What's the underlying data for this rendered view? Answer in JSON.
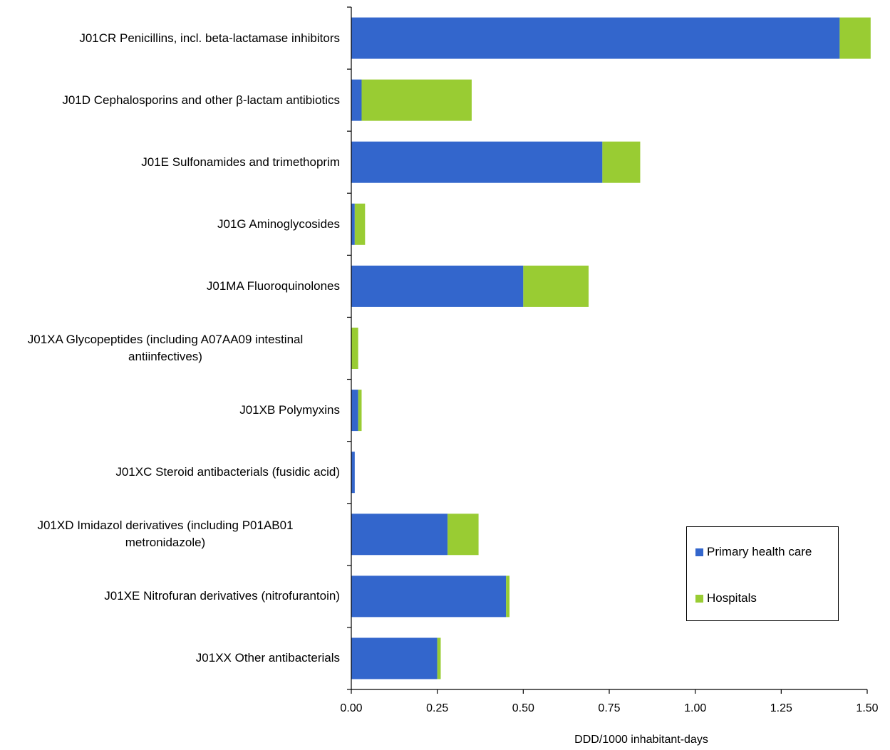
{
  "chart_data": {
    "type": "bar",
    "orientation": "horizontal",
    "stacked": true,
    "categories": [
      "J01CR Penicillins, incl. beta-lactamase inhibitors",
      "J01D Cephalosporins and other β-lactam antibiotics",
      "J01E Sulfonamides and trimethoprim",
      "J01G Aminoglycosides",
      "J01MA Fluoroquinolones",
      "J01XA Glycopeptides (including A07AA09 intestinal antiinfectives)",
      "J01XB Polymyxins",
      "J01XC Steroid antibacterials (fusidic acid)",
      "J01XD Imidazol derivatives (including P01AB01 metronidazole)",
      "J01XE Nitrofuran derivatives (nitrofurantoin)",
      "J01XX Other antibacterials"
    ],
    "category_lines": [
      [
        "J01CR Penicillins, incl. beta-lactamase inhibitors"
      ],
      [
        "J01D Cephalosporins and other β-lactam antibiotics"
      ],
      [
        "J01E Sulfonamides and trimethoprim"
      ],
      [
        "J01G Aminoglycosides"
      ],
      [
        "J01MA Fluoroquinolones"
      ],
      [
        "J01XA Glycopeptides (including A07AA09 intestinal",
        "antiinfectives)"
      ],
      [
        "J01XB Polymyxins"
      ],
      [
        "J01XC Steroid antibacterials (fusidic acid)"
      ],
      [
        "J01XD Imidazol derivatives (including P01AB01",
        "metronidazole)"
      ],
      [
        "J01XE Nitrofuran derivatives (nitrofurantoin)"
      ],
      [
        "J01XX Other antibacterials"
      ]
    ],
    "series": [
      {
        "name": "Primary health care",
        "color": "#3366CC",
        "values": [
          1.42,
          0.03,
          0.73,
          0.01,
          0.5,
          0.0,
          0.02,
          0.01,
          0.28,
          0.45,
          0.25
        ]
      },
      {
        "name": "Hospitals",
        "color": "#99CC33",
        "values": [
          0.09,
          0.32,
          0.11,
          0.03,
          0.19,
          0.02,
          0.01,
          0.0,
          0.09,
          0.01,
          0.01
        ]
      }
    ],
    "xlim": [
      0,
      1.5
    ],
    "xticks": [
      "0.00",
      "0.25",
      "0.50",
      "0.75",
      "1.00",
      "1.25",
      "1.50"
    ],
    "xlabel": "DDD/1000 inhabitant-days",
    "title": "",
    "grid": false,
    "legend_position": "bottom-right"
  }
}
